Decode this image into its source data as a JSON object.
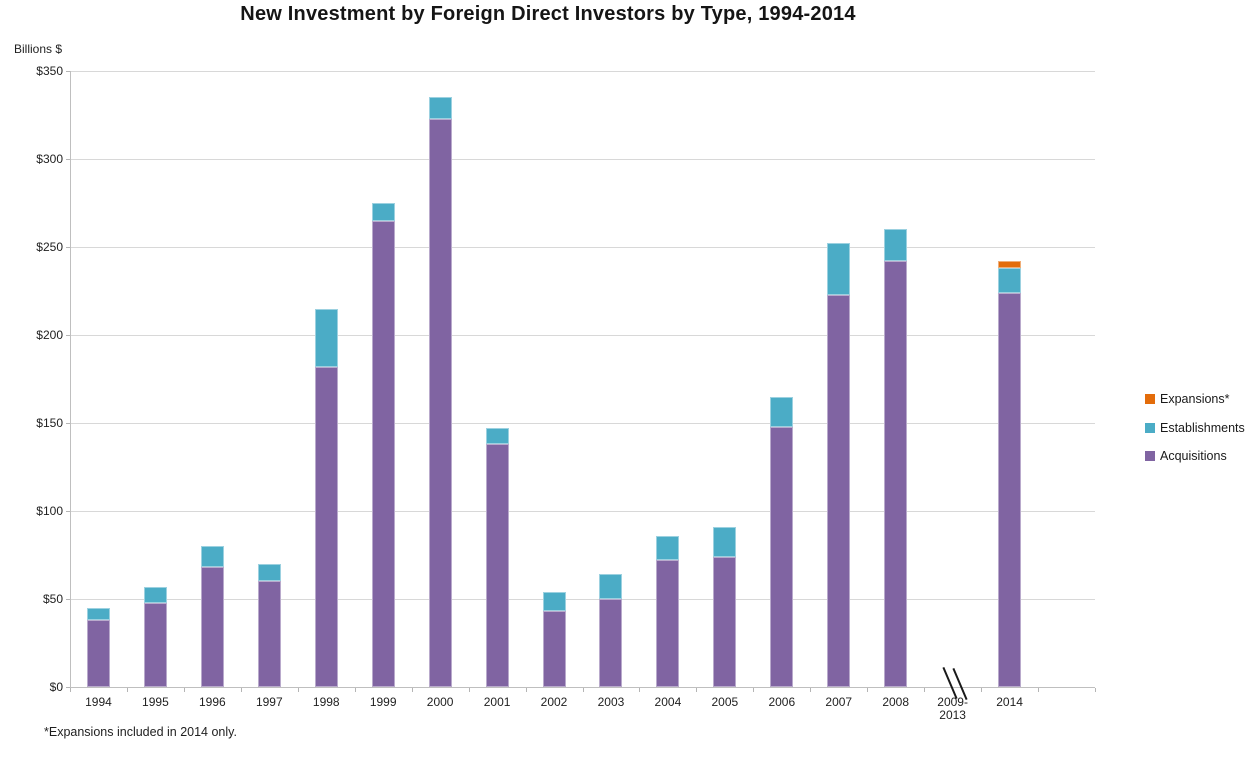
{
  "title": "New Investment by Foreign Direct Investors by Type, 1994-2014",
  "y_axis_unit": "Billions $",
  "footnote": "*Expansions included in 2014 only.",
  "colors": {
    "acquisitions": "#8064A2",
    "establishments": "#4BACC6",
    "expansions": "#E36C0A",
    "gridline": "#D8D8D8",
    "axis": "#BFBFBF",
    "text": "#1A1A1A"
  },
  "chart_data": {
    "type": "bar",
    "stacked": true,
    "title": "New Investment by Foreign Direct Investors by Type, 1994-2014",
    "ylabel": "Billions $",
    "ylim": [
      0,
      350
    ],
    "y_tick_step": 50,
    "y_tick_labels": [
      "$350",
      "$300",
      "$250",
      "$200",
      "$150",
      "$100",
      "$50",
      "$0"
    ],
    "grid": "horizontal",
    "legend_position": "right",
    "categories": [
      "1994",
      "1995",
      "1996",
      "1997",
      "1998",
      "1999",
      "2000",
      "2001",
      "2002",
      "2003",
      "2004",
      "2005",
      "2006",
      "2007",
      "2008",
      "2009-\n2013",
      "2014"
    ],
    "axis_break_category": "2009-\n2013",
    "series": [
      {
        "name": "Acquisitions",
        "color": "#8064A2",
        "values": [
          38,
          48,
          68,
          60,
          182,
          265,
          323,
          138,
          43,
          50,
          72,
          74,
          148,
          223,
          242,
          0,
          224
        ]
      },
      {
        "name": "Establishments",
        "color": "#4BACC6",
        "values": [
          7,
          9,
          12,
          10,
          33,
          10,
          12,
          9,
          11,
          14,
          14,
          17,
          17,
          29,
          18,
          0,
          14
        ]
      },
      {
        "name": "Expansions*",
        "color": "#E36C0A",
        "values": [
          0,
          0,
          0,
          0,
          0,
          0,
          0,
          0,
          0,
          0,
          0,
          0,
          0,
          0,
          0,
          0,
          4
        ]
      }
    ],
    "legend": [
      {
        "label": "Expansions*",
        "color": "#E36C0A"
      },
      {
        "label": "Establishments",
        "color": "#4BACC6"
      },
      {
        "label": "Acquisitions",
        "color": "#8064A2"
      }
    ]
  }
}
